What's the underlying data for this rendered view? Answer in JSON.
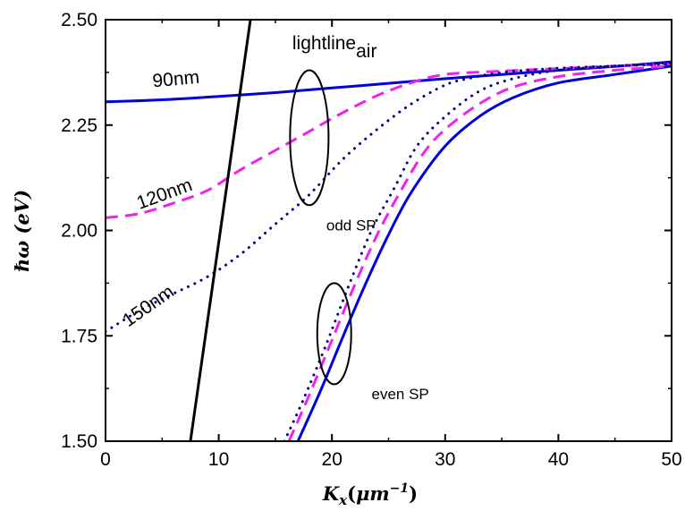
{
  "chart_data": {
    "type": "line",
    "xlabel": "K_x(μm^-1)",
    "xlabel_parts": {
      "main": "K",
      "sub": "x",
      "open": "(",
      "unit": "μm",
      "sup": "−1",
      "close": ")"
    },
    "ylabel": "ħω (eV)",
    "ylabel_parts": {
      "symbol": "ℏω",
      "unit": " (eV)"
    },
    "xlim": [
      0,
      50
    ],
    "ylim": [
      1.5,
      2.5
    ],
    "x_ticks": [
      0,
      10,
      20,
      30,
      40,
      50
    ],
    "y_ticks": [
      1.5,
      1.75,
      2.0,
      2.25,
      2.5
    ],
    "x_tick_labels": [
      "0",
      "10",
      "20",
      "30",
      "40",
      "50"
    ],
    "y_tick_labels": [
      "1.50",
      "1.75",
      "2.00",
      "2.25",
      "2.50"
    ],
    "grid": false,
    "legend": "none",
    "colors": {
      "blue": "#0000dd",
      "magenta": "#ee22ee",
      "navy": "#000080",
      "black": "#000000"
    },
    "series": [
      {
        "label_group": "90nm",
        "mode": "odd",
        "style": "solid",
        "color": "#0000dd",
        "x": [
          0,
          5,
          10,
          15,
          20,
          25,
          30,
          35,
          40,
          45,
          50
        ],
        "y": [
          2.305,
          2.31,
          2.318,
          2.327,
          2.338,
          2.349,
          2.36,
          2.37,
          2.38,
          2.389,
          2.4
        ]
      },
      {
        "label_group": "120nm",
        "mode": "odd",
        "style": "dashed",
        "color": "#ee22ee",
        "x": [
          0,
          3,
          6,
          9,
          12,
          15,
          18,
          21,
          24,
          27,
          30,
          35,
          40,
          45,
          50
        ],
        "y": [
          2.03,
          2.04,
          2.065,
          2.095,
          2.145,
          2.19,
          2.235,
          2.28,
          2.32,
          2.35,
          2.37,
          2.378,
          2.384,
          2.39,
          2.395
        ]
      },
      {
        "label_group": "150nm",
        "mode": "odd",
        "style": "dotted",
        "color": "#000080",
        "x": [
          0,
          3,
          6,
          9,
          12,
          15,
          18,
          21,
          24,
          27,
          30,
          32,
          35,
          40,
          45,
          50
        ],
        "y": [
          1.76,
          1.81,
          1.85,
          1.89,
          1.945,
          2.015,
          2.085,
          2.17,
          2.24,
          2.3,
          2.345,
          2.36,
          2.375,
          2.385,
          2.39,
          2.395
        ]
      },
      {
        "label_group": "90nm",
        "mode": "even",
        "style": "solid",
        "color": "#0000dd",
        "x": [
          17,
          19,
          21,
          23,
          25,
          27,
          30,
          33,
          36,
          40,
          45,
          50
        ],
        "y": [
          1.5,
          1.62,
          1.75,
          1.875,
          1.99,
          2.09,
          2.2,
          2.27,
          2.315,
          2.35,
          2.37,
          2.39
        ]
      },
      {
        "label_group": "120nm",
        "mode": "even",
        "style": "dashed",
        "color": "#ee22ee",
        "x": [
          16.2,
          18,
          20,
          22,
          24,
          26,
          28,
          30,
          33,
          36,
          40,
          45,
          50
        ],
        "y": [
          1.5,
          1.61,
          1.74,
          1.87,
          1.99,
          2.09,
          2.18,
          2.24,
          2.3,
          2.34,
          2.365,
          2.38,
          2.39
        ]
      },
      {
        "label_group": "150nm",
        "mode": "even",
        "style": "dotted",
        "color": "#000080",
        "x": [
          15.8,
          17.5,
          19.5,
          21.5,
          23.5,
          25.5,
          27.5,
          30,
          33,
          36,
          40,
          45,
          50
        ],
        "y": [
          1.5,
          1.6,
          1.73,
          1.87,
          2.0,
          2.1,
          2.2,
          2.27,
          2.33,
          2.36,
          2.38,
          2.39,
          2.398
        ]
      },
      {
        "label_group": "lightline",
        "mode": "light",
        "style": "solid",
        "color": "#000000",
        "x": [
          7.5,
          12.8
        ],
        "y": [
          1.5,
          2.5
        ]
      }
    ],
    "annotations": {
      "label_90nm": {
        "text": "90nm",
        "x": 4.2,
        "y": 2.34,
        "rotate": -5
      },
      "label_120nm": {
        "text": "120nm",
        "x": 3.0,
        "y": 2.05,
        "rotate": -20
      },
      "label_150nm": {
        "text": "150nm",
        "x": 2.0,
        "y": 1.77,
        "rotate": -35
      },
      "lightline": {
        "text": "lightline",
        "sub": "air",
        "x": 16.5,
        "y": 2.43
      },
      "odd_sp": {
        "text": "odd SP",
        "x": 19.5,
        "y": 2.0
      },
      "even_sp": {
        "text": "even SP",
        "x": 23.5,
        "y": 1.6
      }
    },
    "ellipses": [
      {
        "name": "odd-sp-ellipse",
        "cx": 18.0,
        "cy": 2.22,
        "rx": 1.7,
        "ry": 0.16
      },
      {
        "name": "even-sp-ellipse",
        "cx": 20.2,
        "cy": 1.755,
        "rx": 1.5,
        "ry": 0.12
      }
    ]
  }
}
